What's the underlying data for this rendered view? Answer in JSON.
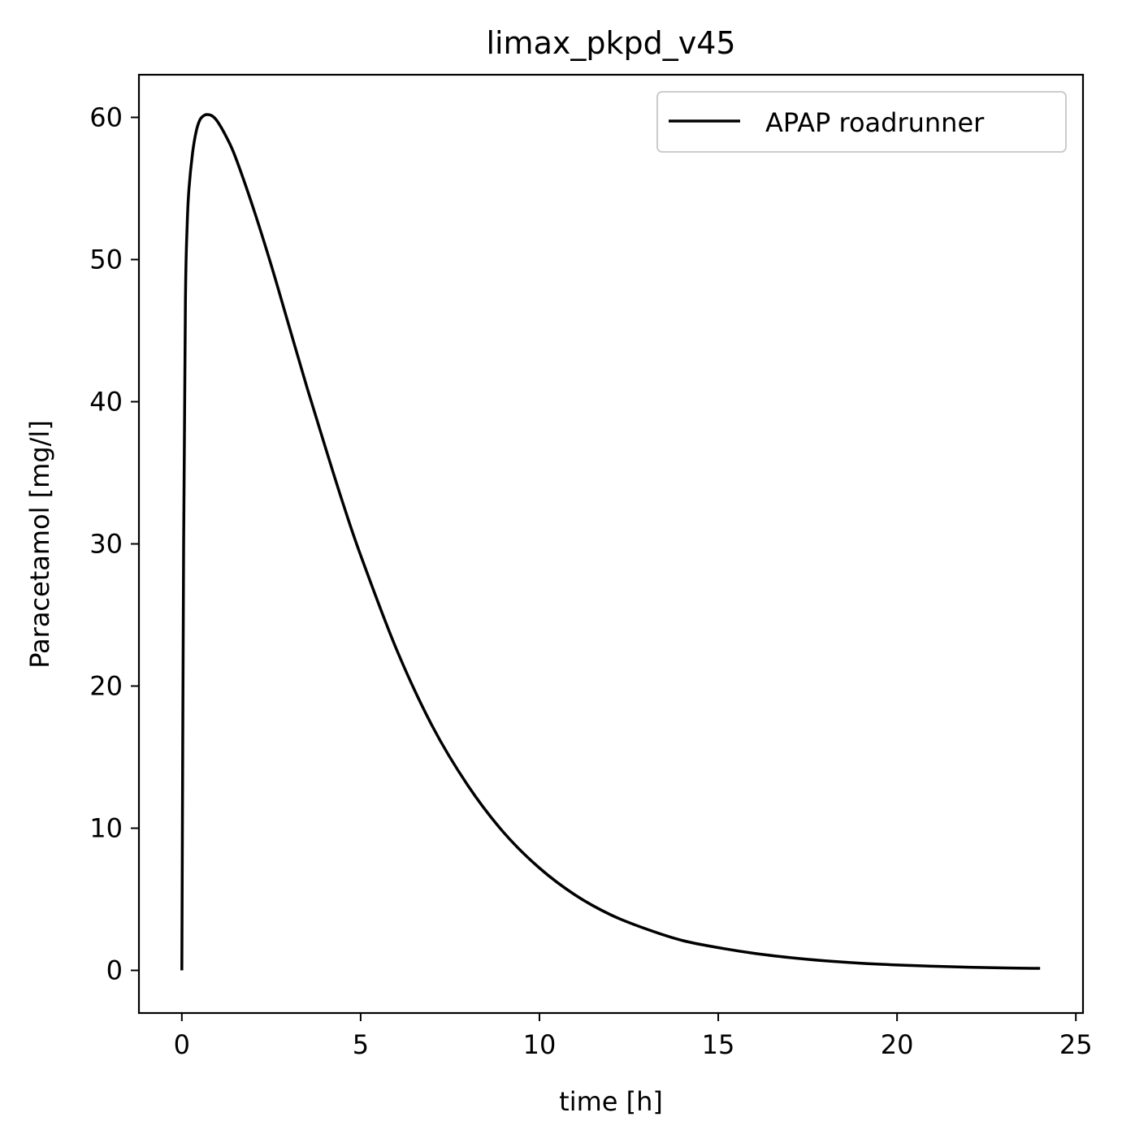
{
  "chart_data": {
    "type": "line",
    "title": "limax_pkpd_v45",
    "xlabel": "time [h]",
    "ylabel": "Paracetamol [mg/l]",
    "xlim": [
      -1.2,
      25.2
    ],
    "ylim": [
      -3,
      63
    ],
    "xticks": [
      0,
      5,
      10,
      15,
      20,
      25
    ],
    "yticks": [
      0,
      10,
      20,
      30,
      40,
      50,
      60
    ],
    "legend_position": "top-right",
    "grid": false,
    "series": [
      {
        "name": "APAP roadrunner",
        "color": "#000000",
        "x": [
          0,
          0.05,
          0.1,
          0.15,
          0.2,
          0.3,
          0.4,
          0.5,
          0.6,
          0.7,
          0.85,
          1.0,
          1.25,
          1.5,
          2,
          2.5,
          3,
          3.5,
          4,
          4.5,
          5,
          6,
          7,
          8,
          9,
          10,
          11,
          12,
          13,
          14,
          15,
          16,
          17,
          18,
          19,
          20,
          21,
          22,
          23,
          24
        ],
        "y": [
          0,
          30,
          47,
          52.5,
          55,
          57.5,
          59,
          59.8,
          60.1,
          60.2,
          60.1,
          59.7,
          58.6,
          57.2,
          53.6,
          49.6,
          45.3,
          41.0,
          36.9,
          32.9,
          29.2,
          22.6,
          17.2,
          13.0,
          9.7,
          7.2,
          5.3,
          3.9,
          2.9,
          2.1,
          1.6,
          1.2,
          0.9,
          0.67,
          0.5,
          0.38,
          0.29,
          0.22,
          0.17,
          0.14
        ]
      }
    ]
  }
}
